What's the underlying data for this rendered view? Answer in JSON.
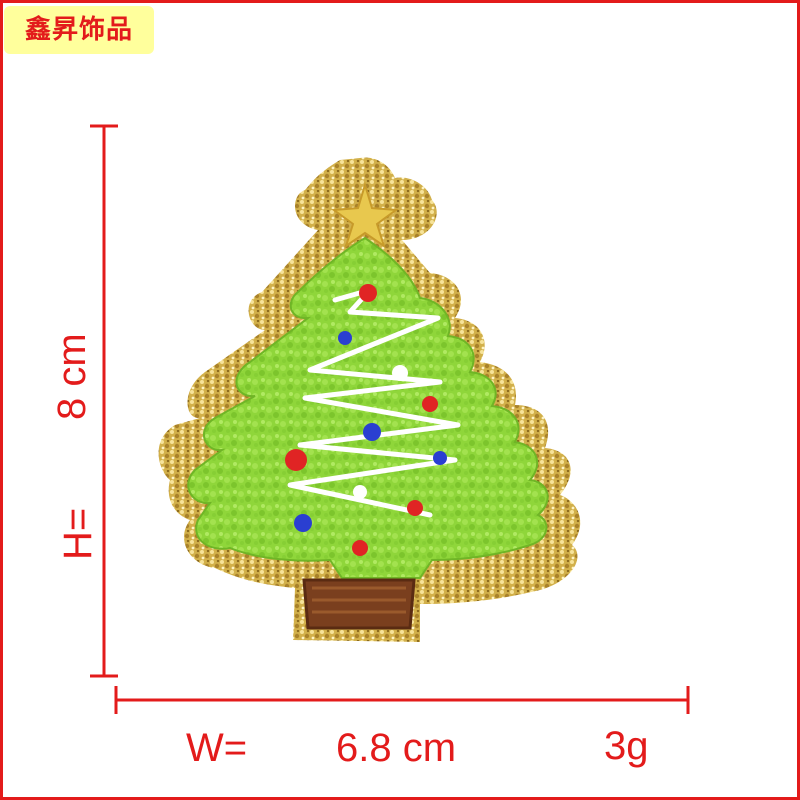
{
  "brand": {
    "name": "鑫昇饰品"
  },
  "dimensions": {
    "height_label": "H=",
    "height_value": "8 cm",
    "width_label": "W=",
    "width_value": "6.8 cm",
    "weight": "3g"
  },
  "colors": {
    "accent_red": "#e31b1b",
    "brand_background": "#ffff9c",
    "glitter_gold": "#d9b84a",
    "chenille_green": "#8fd63a",
    "trunk_brown": "#7a3f1e"
  },
  "product": {
    "kind": "christmas-tree-patch",
    "ornament_colors": [
      "red",
      "blue",
      "white"
    ]
  }
}
